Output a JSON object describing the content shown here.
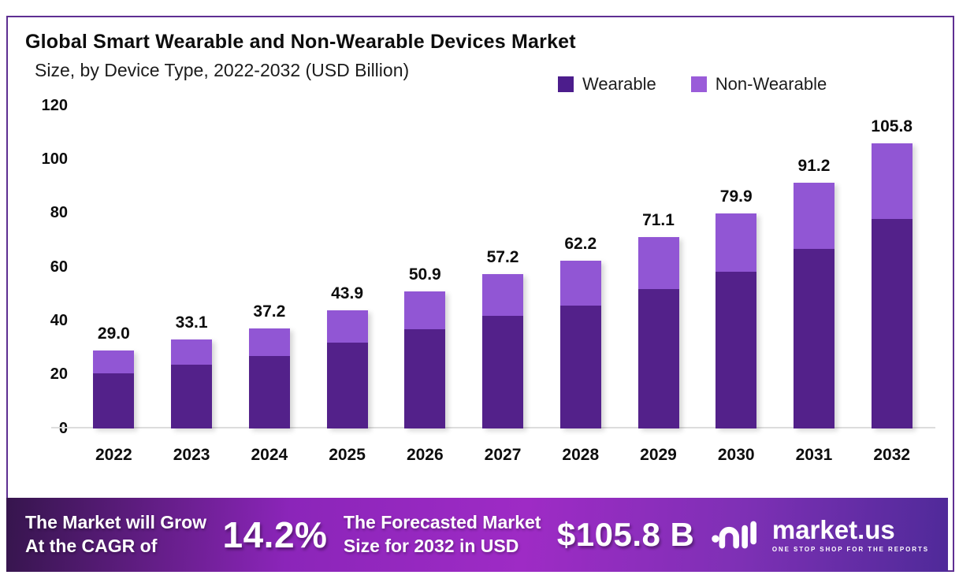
{
  "header": {
    "title": "Global Smart Wearable and Non-Wearable Devices Market",
    "subtitle": "Size, by Device Type, 2022-2032 (USD Billion)"
  },
  "legend": [
    {
      "label": "Wearable",
      "color": "#4c1d8c"
    },
    {
      "label": "Non-Wearable",
      "color": "#9a5cd9"
    }
  ],
  "chart_data": {
    "type": "bar",
    "stacked": true,
    "title": "Global Smart Wearable and Non-Wearable Devices Market Size, by Device Type, 2022-2032 (USD Billion)",
    "categories": [
      "2022",
      "2023",
      "2024",
      "2025",
      "2026",
      "2027",
      "2028",
      "2029",
      "2030",
      "2031",
      "2032"
    ],
    "series": [
      {
        "name": "Wearable",
        "color": "#53218a",
        "values": [
          20.5,
          23.7,
          26.8,
          31.7,
          36.9,
          41.6,
          45.4,
          51.7,
          58.2,
          66.7,
          77.6
        ]
      },
      {
        "name": "Non-Wearable",
        "color": "#9156d4",
        "values": [
          8.5,
          9.4,
          10.4,
          12.2,
          14.0,
          15.6,
          16.8,
          19.4,
          21.7,
          24.5,
          28.2
        ]
      }
    ],
    "totals": [
      29.0,
      33.1,
      37.2,
      43.9,
      50.9,
      57.2,
      62.2,
      71.1,
      79.9,
      91.2,
      105.8
    ],
    "total_labels": [
      "29.0",
      "33.1",
      "37.2",
      "43.9",
      "50.9",
      "57.2",
      "62.2",
      "71.1",
      "79.9",
      "91.2",
      "105.8"
    ],
    "xlabel": "",
    "ylabel": "",
    "ylim": [
      0,
      120
    ],
    "yticks": [
      0,
      20,
      40,
      60,
      80,
      100,
      120
    ],
    "grid": false,
    "legend_position": "top-right"
  },
  "banner": {
    "left_line1": "The Market will Grow",
    "left_line2": "At the CAGR of",
    "cagr": "14.2%",
    "mid_line1": "The Forecasted Market",
    "mid_line2": "Size for 2032 in USD",
    "value": "$105.8 B",
    "brand": "market.us",
    "brand_tagline": "ONE STOP SHOP FOR THE REPORTS"
  },
  "colors": {
    "card_border": "#5e2f92",
    "wearable": "#53218a",
    "non_wearable": "#9156d4",
    "axis_line": "#dcdcdc",
    "banner_gradient": [
      "#36154d",
      "#8b25b9",
      "#9e2bc5",
      "#7e30b5",
      "#4f2a99"
    ]
  }
}
